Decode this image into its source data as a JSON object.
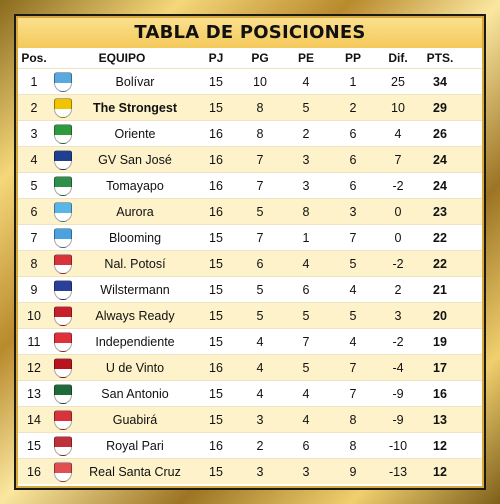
{
  "title": "TABLA DE POSICIONES",
  "columns": {
    "pos": "Pos.",
    "team": "EQUIPO",
    "pj": "PJ",
    "pg": "PG",
    "pe": "PE",
    "pp": "PP",
    "dif": "Dif.",
    "pts": "PTS."
  },
  "rows": [
    {
      "pos": "1",
      "team": "Bolívar",
      "pj": "15",
      "pg": "10",
      "pe": "4",
      "pp": "1",
      "dif": "25",
      "pts": "34",
      "crest": "bolivar-crest-icon",
      "color": "#5aa8e0"
    },
    {
      "pos": "2",
      "team": "The Strongest",
      "pj": "15",
      "pg": "8",
      "pe": "5",
      "pp": "2",
      "dif": "10",
      "pts": "29",
      "crest": "the-strongest-crest-icon",
      "color": "#f2c400"
    },
    {
      "pos": "3",
      "team": "Oriente",
      "pj": "16",
      "pg": "8",
      "pe": "2",
      "pp": "6",
      "dif": "4",
      "pts": "26",
      "crest": "oriente-crest-icon",
      "color": "#2e9a3e"
    },
    {
      "pos": "4",
      "team": "GV San José",
      "pj": "16",
      "pg": "7",
      "pe": "3",
      "pp": "6",
      "dif": "7",
      "pts": "24",
      "crest": "gv-san-jose-crest-icon",
      "color": "#1f3f8f"
    },
    {
      "pos": "5",
      "team": "Tomayapo",
      "pj": "16",
      "pg": "7",
      "pe": "3",
      "pp": "6",
      "dif": "-2",
      "pts": "24",
      "crest": "tomayapo-crest-icon",
      "color": "#2f8f4a"
    },
    {
      "pos": "6",
      "team": "Aurora",
      "pj": "16",
      "pg": "5",
      "pe": "8",
      "pp": "3",
      "dif": "0",
      "pts": "23",
      "crest": "aurora-crest-icon",
      "color": "#59b5e8"
    },
    {
      "pos": "7",
      "team": "Blooming",
      "pj": "15",
      "pg": "7",
      "pe": "1",
      "pp": "7",
      "dif": "0",
      "pts": "22",
      "crest": "blooming-crest-icon",
      "color": "#4aa3e0"
    },
    {
      "pos": "8",
      "team": "Nal. Potosí",
      "pj": "15",
      "pg": "6",
      "pe": "4",
      "pp": "5",
      "dif": "-2",
      "pts": "22",
      "crest": "nacional-potosi-crest-icon",
      "color": "#d8323a"
    },
    {
      "pos": "9",
      "team": "Wilstermann",
      "pj": "15",
      "pg": "5",
      "pe": "6",
      "pp": "4",
      "dif": "2",
      "pts": "21",
      "crest": "wilstermann-crest-icon",
      "color": "#2a3f9a"
    },
    {
      "pos": "10",
      "team": "Always Ready",
      "pj": "15",
      "pg": "5",
      "pe": "5",
      "pp": "5",
      "dif": "3",
      "pts": "20",
      "crest": "always-ready-crest-icon",
      "color": "#c8202a"
    },
    {
      "pos": "11",
      "team": "Independiente",
      "pj": "15",
      "pg": "4",
      "pe": "7",
      "pp": "4",
      "dif": "-2",
      "pts": "19",
      "crest": "independiente-crest-icon",
      "color": "#e0303a"
    },
    {
      "pos": "12",
      "team": "U de Vinto",
      "pj": "16",
      "pg": "4",
      "pe": "5",
      "pp": "7",
      "dif": "-4",
      "pts": "17",
      "crest": "u-de-vinto-crest-icon",
      "color": "#b8141e"
    },
    {
      "pos": "13",
      "team": "San Antonio",
      "pj": "15",
      "pg": "4",
      "pe": "4",
      "pp": "7",
      "dif": "-9",
      "pts": "16",
      "crest": "san-antonio-crest-icon",
      "color": "#1f6a3a"
    },
    {
      "pos": "14",
      "team": "Guabirá",
      "pj": "15",
      "pg": "3",
      "pe": "4",
      "pp": "8",
      "dif": "-9",
      "pts": "13",
      "crest": "guabira-crest-icon",
      "color": "#d8323a"
    },
    {
      "pos": "15",
      "team": "Royal Pari",
      "pj": "16",
      "pg": "2",
      "pe": "6",
      "pp": "8",
      "dif": "-10",
      "pts": "12",
      "crest": "royal-pari-crest-icon",
      "color": "#c0303a"
    },
    {
      "pos": "16",
      "team": "Real Santa Cruz",
      "pj": "15",
      "pg": "3",
      "pe": "3",
      "pp": "9",
      "dif": "-13",
      "pts": "12",
      "crest": "real-santa-cruz-crest-icon",
      "color": "#e05050"
    }
  ]
}
